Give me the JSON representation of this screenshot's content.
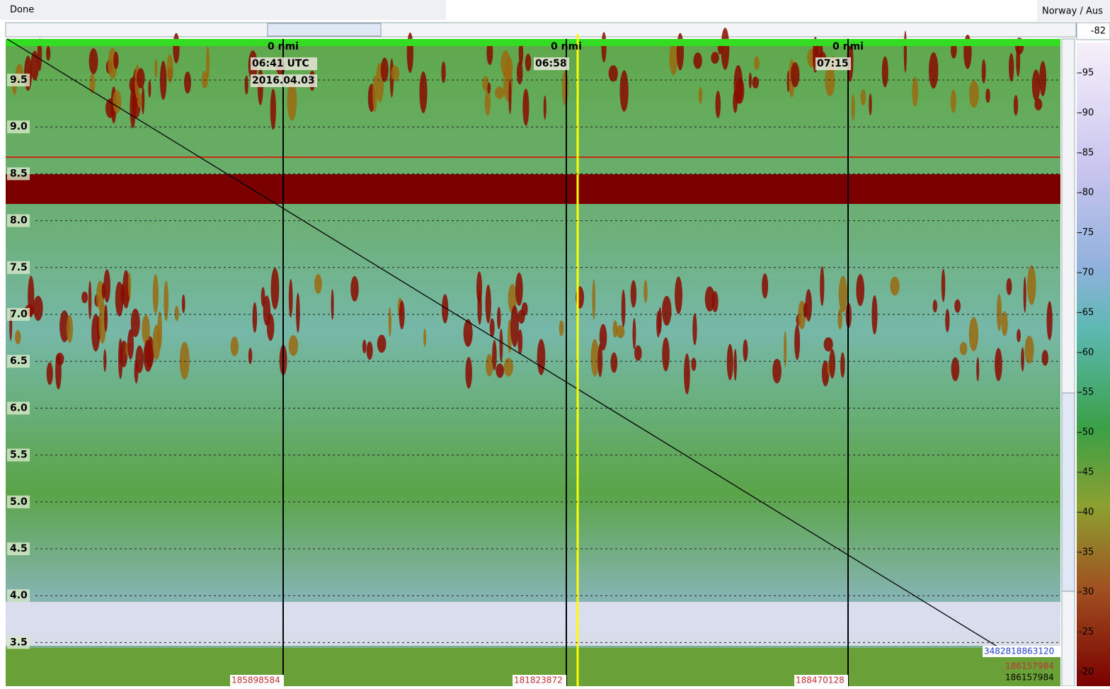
{
  "window": {
    "status": "Done",
    "region": "Norway / Aus"
  },
  "echogram": {
    "depth_labels": [
      "9.5",
      "9.0",
      "8.5",
      "8.0",
      "7.5",
      "7.0",
      "6.5",
      "6.0",
      "5.5",
      "5.0",
      "4.5",
      "4.0",
      "3.5"
    ],
    "markers": [
      {
        "distance": "0 nmi",
        "time": "06:41 UTC",
        "date": "2016.04.03"
      },
      {
        "distance": "0 nmi",
        "time": "06:58"
      },
      {
        "distance": "0 nmi",
        "time": "07:15"
      }
    ],
    "ping_labels": [
      "185898584",
      "181823872",
      "188470128"
    ],
    "track_label": "3482818863120",
    "corner_labels": [
      "186157984",
      "186157984"
    ]
  },
  "colorbar": {
    "current": "-82",
    "labels": [
      "-95",
      "-90",
      "-85",
      "-80",
      "-75",
      "-70",
      "-65",
      "-60",
      "-55",
      "-50",
      "-45",
      "-40",
      "-35",
      "-30",
      "-25",
      "-20"
    ]
  }
}
